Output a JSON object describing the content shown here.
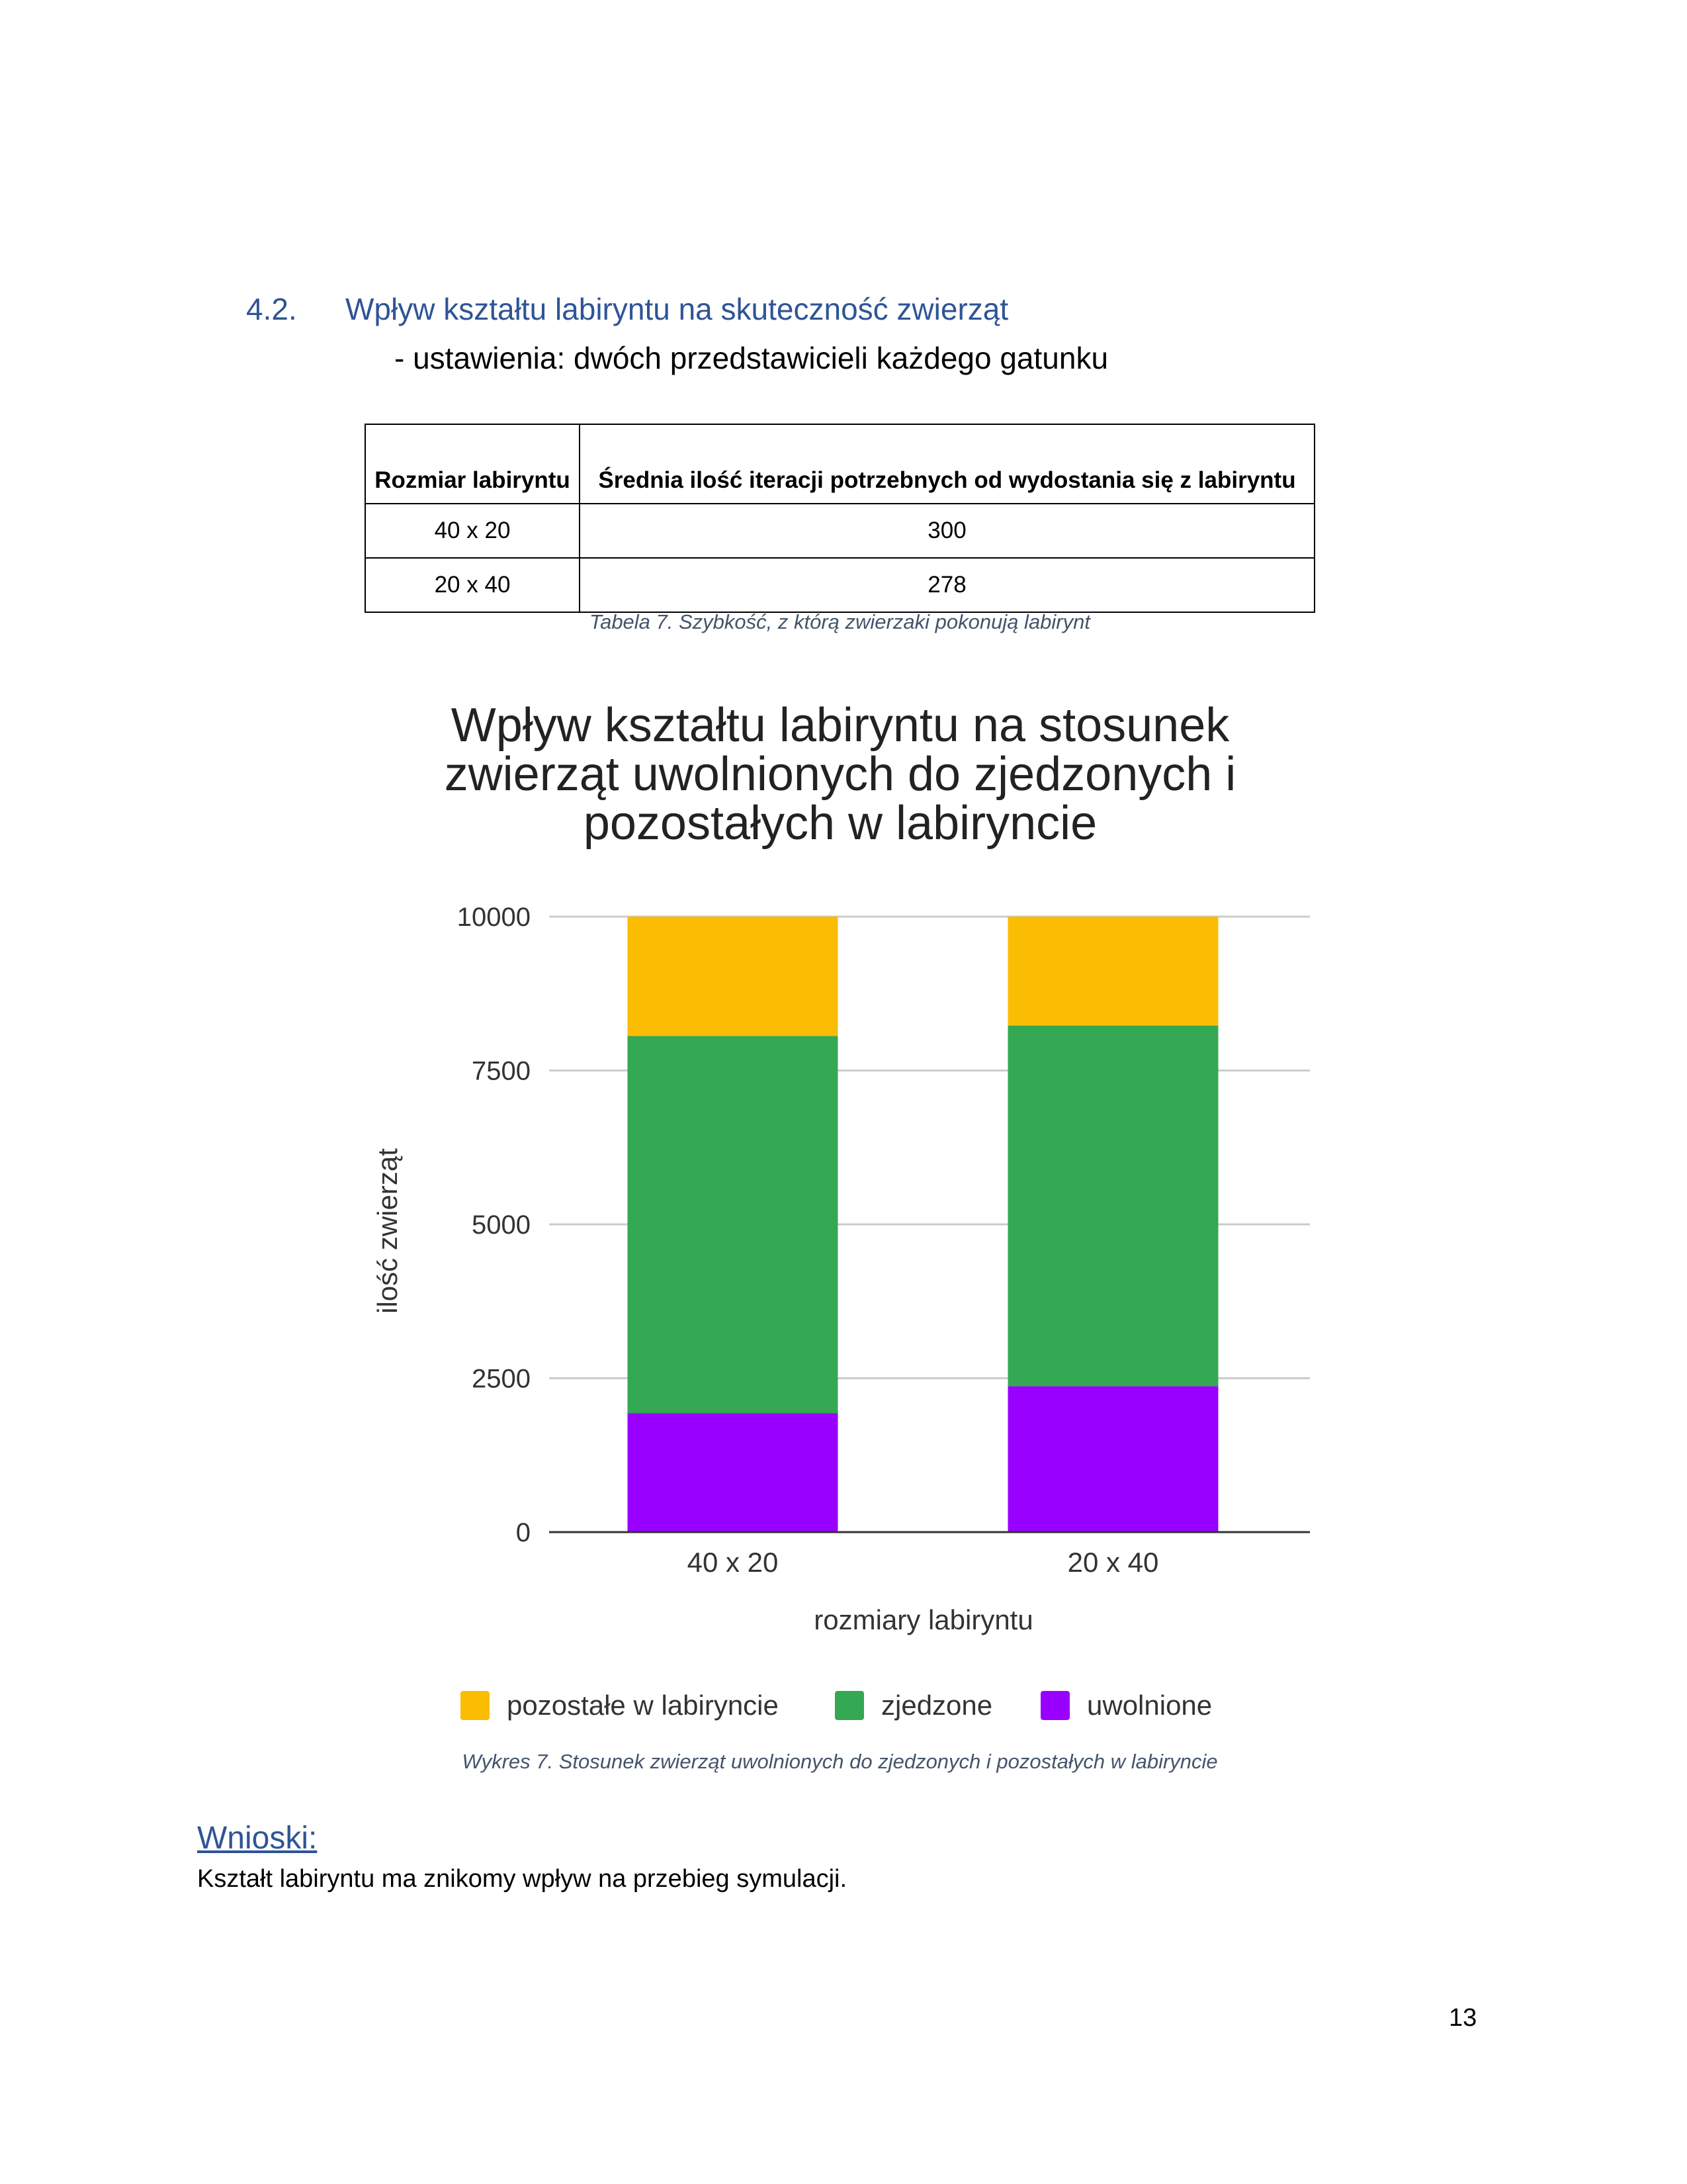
{
  "section": {
    "number": "4.2.",
    "title": "Wpływ kształtu labiryntu na skuteczność zwierząt",
    "subtitle": "- ustawienia: dwóch przedstawicieli każdego gatunku"
  },
  "table": {
    "headers": [
      "Rozmiar labiryntu",
      "Średnia ilość iteracji potrzebnych od wydostania się z labiryntu"
    ],
    "rows": [
      [
        "40 x 20",
        "300"
      ],
      [
        "20 x 40",
        "278"
      ]
    ],
    "caption": "Tabela 7. Szybkość, z którą zwierzaki pokonują labirynt"
  },
  "chart_data": {
    "type": "bar",
    "stacked": true,
    "title": "Wpływ kształtu labiryntu na stosunek zwierząt uwolnionych do zjedzonych i pozostałych w labiryncie",
    "title_lines": [
      "Wpływ kształtu labiryntu na stosunek",
      "zwierząt uwolnionych do zjedzonych i",
      "pozostałych w labiryncie"
    ],
    "xlabel": "rozmiary labiryntu",
    "ylabel": "ilość zwierząt",
    "categories": [
      "40 x 20",
      "20 x 40"
    ],
    "ylim": [
      0,
      10000
    ],
    "yticks": [
      "0",
      "2500",
      "5000",
      "7500",
      "10000"
    ],
    "grid": true,
    "legend_position": "bottom",
    "series": [
      {
        "name": "uwolnione",
        "values": [
          1930,
          2370
        ],
        "color": "#9900ff"
      },
      {
        "name": "zjedzone",
        "values": [
          6130,
          5860
        ],
        "color": "#34a853"
      },
      {
        "name": "pozostałe w labiryncie",
        "values": [
          1940,
          1770
        ],
        "color": "#fbbc04"
      }
    ],
    "legend_order": [
      "pozostałe w labiryncie",
      "zjedzone",
      "uwolnione"
    ]
  },
  "chart_caption": "Wykres 7. Stosunek zwierząt uwolnionych do zjedzonych i pozostałych w labiryncie",
  "conclusions": {
    "heading": "Wnioski:",
    "text": "Kształt labiryntu ma znikomy wpływ na przebieg symulacji."
  },
  "page_number": "13"
}
